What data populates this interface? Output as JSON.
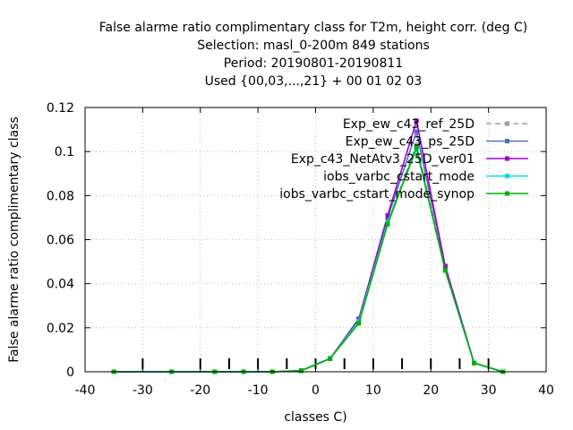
{
  "chart_data": {
    "type": "line",
    "title_lines": [
      "False alarme ratio complimentary class  for T2m, height corr. (deg C)",
      "Selection: masl_0-200m    849 stations",
      "Period: 20190801-20190811",
      "Used {00,03,...,21} + 00 01 02 03"
    ],
    "xlabel": "classes C)",
    "ylabel": "False alarme ratio complimentary class",
    "xlim": [
      -40,
      40
    ],
    "ylim": [
      0,
      0.12
    ],
    "xticks": [
      -40,
      -30,
      -20,
      -10,
      0,
      10,
      20,
      30,
      40
    ],
    "yticks": [
      0,
      0.02,
      0.04,
      0.06,
      0.08,
      0.1,
      0.12
    ],
    "xtick_labels": [
      "-40",
      "-30",
      "-20",
      "-10",
      "0",
      "10",
      "20",
      "30",
      "40"
    ],
    "ytick_labels": [
      "0",
      "0.02",
      "0.04",
      "0.06",
      "0.08",
      "0.1",
      "0.12"
    ],
    "class_markers_x": [
      -30,
      -20,
      -15,
      -10,
      -5,
      0,
      5,
      10,
      15,
      20,
      25,
      30
    ],
    "legend_position": "top-right",
    "grid": true,
    "x": [
      -35,
      -25,
      -17.5,
      -12.5,
      -7.5,
      -2.5,
      2.5,
      7.5,
      12.5,
      17.5,
      22.5,
      27.5,
      32.5
    ],
    "series": [
      {
        "name": "Exp_ew_c43_ref_25D",
        "color": "#a0a0a0",
        "dash": true,
        "values": [
          0,
          0,
          0,
          0,
          0,
          0.0005,
          0.006,
          0.023,
          0.068,
          0.103,
          0.047,
          0.004,
          0
        ]
      },
      {
        "name": "Exp_ew_c43_ps_25D",
        "color": "#4a74c4",
        "dash": false,
        "values": [
          0,
          0,
          0,
          0,
          0,
          0.0005,
          0.006,
          0.024,
          0.07,
          0.109,
          0.048,
          0.004,
          0
        ]
      },
      {
        "name": "Exp_c43_NetAtv3_25D_ver01",
        "color": "#a000d0",
        "dash": false,
        "values": [
          0,
          0,
          0,
          0,
          0,
          0.0005,
          0.006,
          0.024,
          0.071,
          0.114,
          0.048,
          0.004,
          0
        ]
      },
      {
        "name": "iobs_varbc_cstart_mode",
        "color": "#00e0e0",
        "dash": false,
        "values": [
          0,
          0,
          0,
          0,
          0,
          0.0005,
          0.006,
          0.023,
          0.068,
          0.101,
          0.046,
          0.004,
          0
        ]
      },
      {
        "name": "iobs_varbc_cstart_mode_synop",
        "color": "#00b000",
        "dash": false,
        "values": [
          0,
          0,
          0,
          0,
          0,
          0.0005,
          0.006,
          0.022,
          0.067,
          0.102,
          0.046,
          0.004,
          0
        ]
      }
    ]
  }
}
